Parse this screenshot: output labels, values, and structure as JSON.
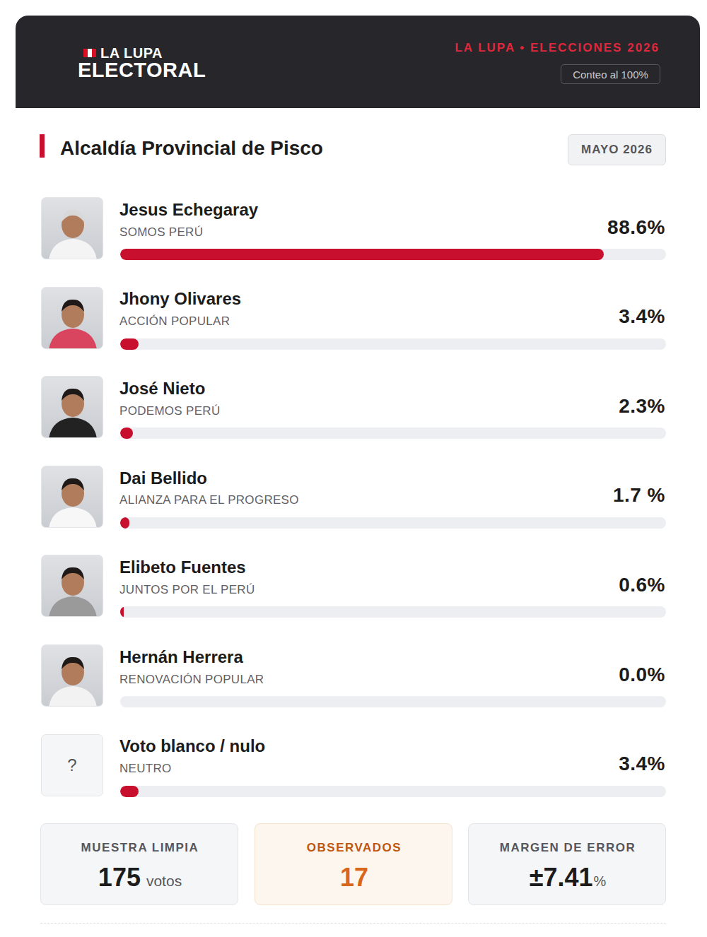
{
  "header": {
    "brand_top": "LA LUPA",
    "brand_bottom": "ELECTORAL",
    "edition": "LA LUPA • ELECCIONES 2026",
    "count_badge": "Conteo al 100%"
  },
  "chart_data": {
    "type": "bar",
    "orientation": "horizontal",
    "title": "Alcaldía Provincial de Pisco",
    "subtitle": "MAYO 2026",
    "categories": [
      "Jesus Echegaray",
      "Jhony Olivares",
      "José Nieto",
      "Dai Bellido",
      "Elibeto Fuentes",
      "Hernán Herrera",
      "Voto blanco / nulo"
    ],
    "parties": [
      "SOMOS PERÚ",
      "ACCIÓN POPULAR",
      "PODEMOS PERÚ",
      "ALIANZA PARA EL PROGRESO",
      "JUNTOS POR EL PERÚ",
      "RENOVACIÓN POPULAR",
      "NEUTRO"
    ],
    "values": [
      88.6,
      3.4,
      2.3,
      1.7,
      0.6,
      0,
      3.4
    ],
    "value_labels": [
      "88.6%",
      "3.4%",
      "2.3%",
      "1.7 %",
      "0.6%",
      "0.0%",
      "3.4%"
    ],
    "color": "#c8102e",
    "xlim": [
      0,
      100
    ],
    "data_labels": true,
    "tick_labels": false,
    "grid": false
  },
  "blank_vote_icon": "?",
  "stats": [
    {
      "label": "MUESTRA LIMPIA",
      "value": 175,
      "unit": "votos"
    },
    {
      "label": "OBSERVADOS",
      "value": 17
    },
    {
      "label": "MARGEN DE ERROR",
      "prefix": "±",
      "value": 7.41,
      "unit": "%"
    }
  ]
}
